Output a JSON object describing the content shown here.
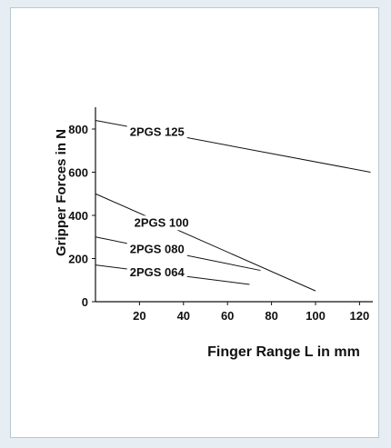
{
  "chart_data": {
    "type": "line",
    "title": "",
    "xlabel": "Finger Range L in mm",
    "ylabel": "Gripper Forces in N",
    "xlim": [
      0,
      125
    ],
    "ylim": [
      0,
      850
    ],
    "xticks": [
      20,
      40,
      60,
      80,
      100,
      120
    ],
    "yticks": [
      0,
      200,
      400,
      600,
      800
    ],
    "grid": false,
    "series": [
      {
        "name": "2PGS 125",
        "x": [
          0,
          125
        ],
        "y": [
          840,
          600
        ]
      },
      {
        "name": "2PGS 100",
        "x": [
          0,
          100
        ],
        "y": [
          500,
          50
        ]
      },
      {
        "name": "2PGS 080",
        "x": [
          0,
          75
        ],
        "y": [
          300,
          145
        ]
      },
      {
        "name": "2PGS 064",
        "x": [
          0,
          70
        ],
        "y": [
          170,
          80
        ]
      }
    ]
  }
}
